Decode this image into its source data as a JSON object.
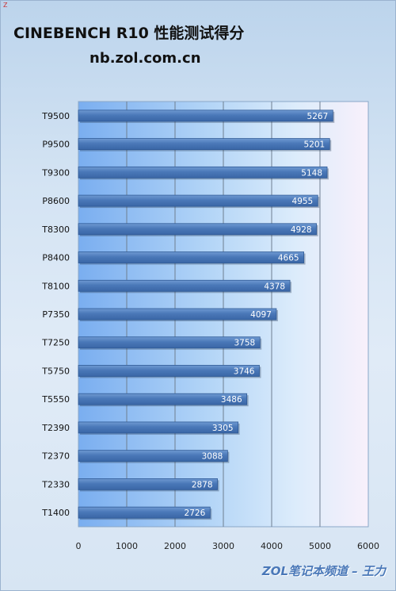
{
  "header": {
    "corner_mark": "Z",
    "title": "CINEBENCH R10 性能测试得分",
    "subtitle": "nb.zol.com.cn"
  },
  "watermark": "ZOL笔记本频道 – 王力",
  "colors": {
    "bar": "#4a78b8",
    "bar_dark": "#2f5a96",
    "plot_left": "#7aaef0",
    "plot_right": "#f8f0fb"
  },
  "chart_data": {
    "type": "bar",
    "orientation": "horizontal",
    "title": "CINEBENCH R10 性能测试得分",
    "subtitle": "nb.zol.com.cn",
    "categories": [
      "T9500",
      "P9500",
      "T9300",
      "P8600",
      "T8300",
      "P8400",
      "T8100",
      "P7350",
      "T7250",
      "T5750",
      "T5550",
      "T2390",
      "T2370",
      "T2330",
      "T1400"
    ],
    "values": [
      5267,
      5201,
      5148,
      4955,
      4928,
      4665,
      4378,
      4097,
      3758,
      3746,
      3486,
      3305,
      3088,
      2878,
      2726
    ],
    "xlim": [
      0,
      6000
    ],
    "xticks": [
      0,
      1000,
      2000,
      3000,
      4000,
      5000,
      6000
    ],
    "grid": true,
    "legend": "none"
  }
}
